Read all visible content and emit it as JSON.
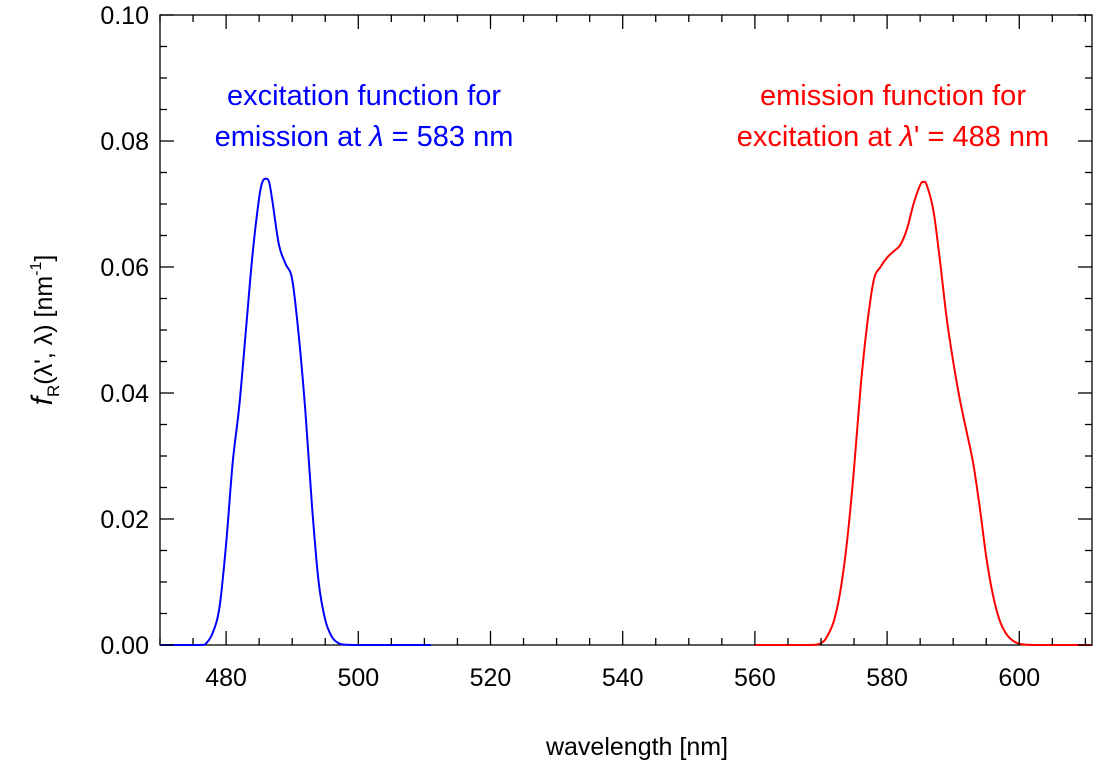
{
  "chart_data": {
    "type": "line",
    "xlabel": "wavelength [nm]",
    "ylabel": {
      "symbol": "f",
      "subscript": "R",
      "argument": "(λ', λ)",
      "unit_open": "[nm",
      "unit_sup": "-1",
      "unit_close": "]"
    },
    "xlim": [
      470,
      611
    ],
    "ylim": [
      0,
      0.1
    ],
    "x_ticks": [
      "480",
      "500",
      "520",
      "540",
      "560",
      "580",
      "600"
    ],
    "y_ticks": [
      "0.00",
      "0.02",
      "0.04",
      "0.06",
      "0.08",
      "0.10"
    ],
    "grid": false,
    "series": [
      {
        "name": "excitation function for emission at λ = 583 nm",
        "color": "#0000ff",
        "x": [
          470,
          476,
          477,
          478,
          479,
          480,
          481,
          482,
          483,
          484,
          485,
          485.5,
          486,
          486.5,
          487,
          488,
          489,
          490,
          491,
          492,
          493,
          494,
          495,
          496,
          497,
          498,
          500,
          505,
          511
        ],
        "y": [
          0,
          0,
          0.0003,
          0.002,
          0.006,
          0.016,
          0.029,
          0.038,
          0.05,
          0.062,
          0.071,
          0.0735,
          0.074,
          0.0735,
          0.0705,
          0.0635,
          0.0605,
          0.058,
          0.049,
          0.037,
          0.022,
          0.01,
          0.004,
          0.0013,
          0.0003,
          5e-05,
          0,
          0,
          0
        ]
      },
      {
        "name": "emission function for excitation at λ' = 488 nm",
        "color": "#ff0000",
        "x": [
          560,
          568,
          570,
          571,
          572,
          573,
          574,
          575,
          576,
          577,
          578,
          579,
          580,
          581,
          582,
          583,
          584,
          585,
          585.5,
          586,
          587,
          588,
          589,
          590,
          591,
          592,
          593,
          594,
          595,
          596,
          597,
          598,
          599,
          600,
          601,
          603,
          611
        ],
        "y": [
          0,
          0,
          0.0003,
          0.0015,
          0.004,
          0.009,
          0.017,
          0.028,
          0.041,
          0.051,
          0.058,
          0.06,
          0.0615,
          0.0625,
          0.0635,
          0.066,
          0.07,
          0.073,
          0.0735,
          0.073,
          0.069,
          0.061,
          0.052,
          0.045,
          0.039,
          0.034,
          0.029,
          0.022,
          0.014,
          0.008,
          0.004,
          0.0018,
          0.0007,
          0.0002,
          5e-05,
          0,
          0
        ]
      }
    ],
    "annotations": [
      {
        "id": "blue",
        "lines": [
          "excitation function for",
          "emission at λ = 583 nm"
        ],
        "color": "#0000ff"
      },
      {
        "id": "red",
        "lines": [
          "emission function for",
          "excitation at λ' = 488 nm"
        ],
        "color": "#ff0000"
      }
    ]
  }
}
